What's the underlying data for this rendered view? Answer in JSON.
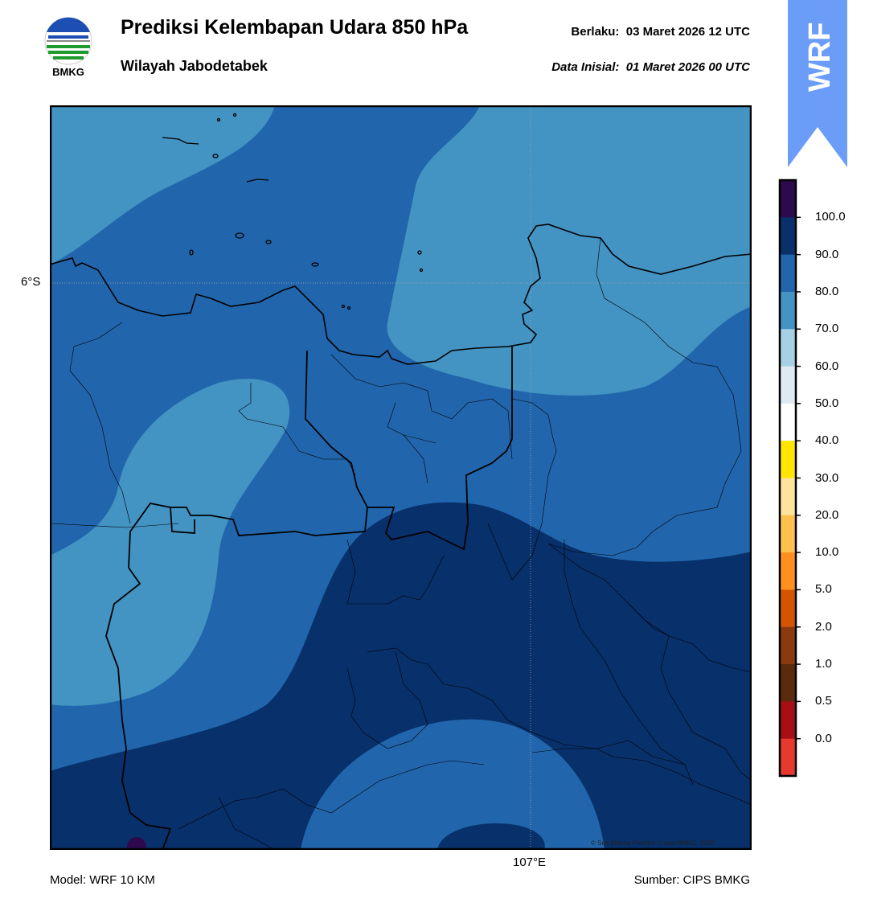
{
  "header": {
    "title": "Prediksi Kelembapan Udara 850 hPa",
    "subtitle": "Wilayah Jabodetabek",
    "valid_time": "Berlaku:  03 Maret 2026 12 UTC",
    "init_time": "Data Inisial:  01 Maret 2026 00 UTC",
    "logo_text": "BMKG",
    "badge_text": "WRF"
  },
  "map": {
    "lat_label": "6°S",
    "lon_label": "107°E",
    "credit": "© Sub Bidang Prediksi Cuaca BMKG, 2020"
  },
  "colorbar": {
    "levels": [
      "100.0",
      "90.0",
      "80.0",
      "70.0",
      "60.0",
      "50.0",
      "40.0",
      "30.0",
      "20.0",
      "10.0",
      "5.0",
      "2.0",
      "1.0",
      "0.5",
      "0.0"
    ],
    "colors_top_to_bottom": [
      "#2d0a4e",
      "#08306b",
      "#2166ac",
      "#4393c3",
      "#a6d0e4",
      "#dde9f3",
      "#ffffff",
      "#ffe500",
      "#ffe39a",
      "#ffc04d",
      "#ff8f1f",
      "#d45500",
      "#8b3a0f",
      "#5c2a0d",
      "#a50f15",
      "#e8392e"
    ]
  },
  "footer": {
    "model": "Model: WRF 10 KM",
    "source": "Sumber: CIPS BMKG"
  },
  "colors": {
    "badge": "#6a9cf8",
    "rh_70_80": "#4393c3",
    "rh_80_90": "#2166ac",
    "rh_90_100": "#08306b",
    "rh_over_100": "#2d0a4e"
  }
}
